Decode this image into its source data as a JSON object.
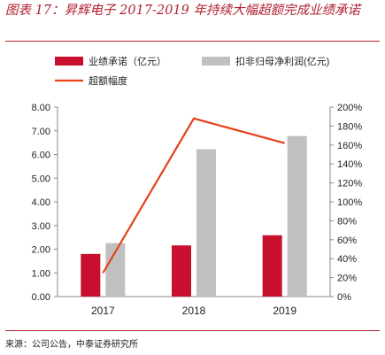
{
  "figure_title": "图表 17：昇辉电子 2017-2019 年持续大幅超额完成业绩承诺",
  "source_text": "来源：公司公告，中泰证券研究所",
  "colors": {
    "accent": "#b0202f",
    "bar_primary": "#c8102e",
    "bar_secondary": "#c0c0c0",
    "line": "#e8401c",
    "axis": "#888888"
  },
  "chart_data": {
    "type": "bar",
    "categories": [
      "2017",
      "2018",
      "2019"
    ],
    "series": [
      {
        "name": "业绩承诺（亿元）",
        "kind": "bar",
        "axis": "left",
        "values": [
          1.8,
          2.16,
          2.59
        ]
      },
      {
        "name": "扣非归母净利润(亿元)",
        "kind": "bar",
        "axis": "left",
        "values": [
          2.26,
          6.22,
          6.78
        ]
      },
      {
        "name": "超额幅度",
        "kind": "line",
        "axis": "right",
        "values": [
          25,
          188,
          162
        ]
      }
    ],
    "y_left": {
      "min": 0,
      "max": 8,
      "ticks": [
        "0.00",
        "1.00",
        "2.00",
        "3.00",
        "4.00",
        "5.00",
        "6.00",
        "7.00",
        "8.00"
      ]
    },
    "y_right": {
      "min": 0,
      "max": 200,
      "ticks": [
        "0%",
        "20%",
        "40%",
        "60%",
        "80%",
        "100%",
        "120%",
        "140%",
        "160%",
        "180%",
        "200%"
      ]
    },
    "legend_placement": "top",
    "grid": false
  }
}
